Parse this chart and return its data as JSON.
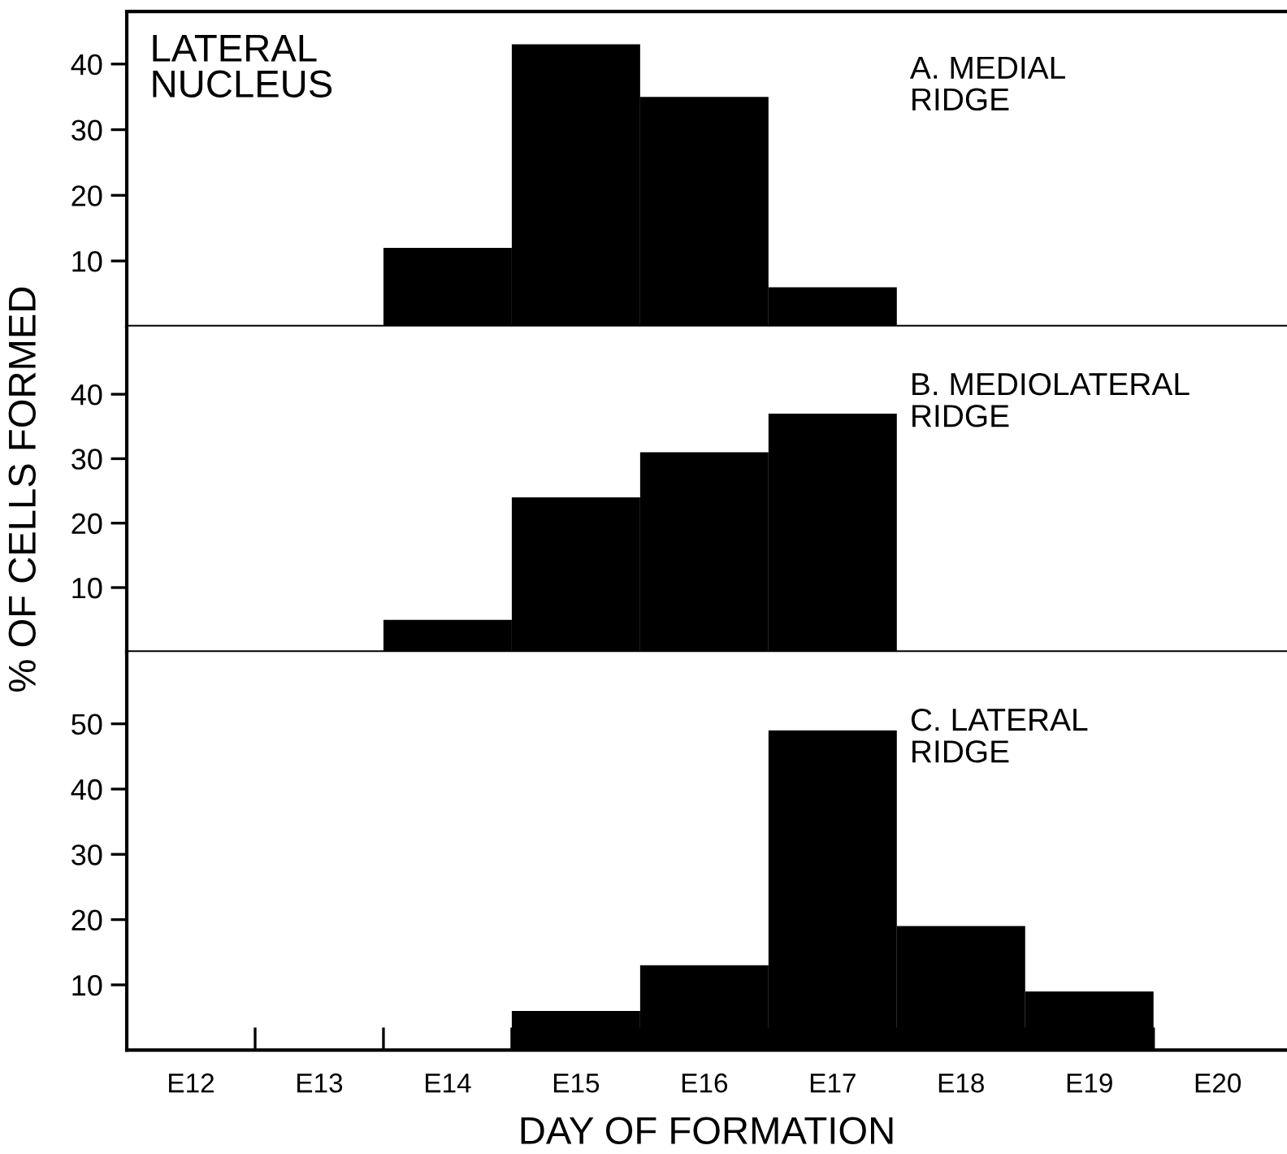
{
  "chart_data": [
    {
      "type": "bar",
      "title": "A. MEDIAL\nRIDGE",
      "annotations": [
        "LATERAL\nNUCLEUS"
      ],
      "values": [
        0,
        0,
        12,
        43,
        35,
        6,
        0,
        0,
        0
      ],
      "color": "#000000",
      "ylim": [
        0,
        48
      ],
      "yticks": [
        10,
        20,
        30,
        40
      ],
      "grid": false,
      "tick_labels": "y"
    },
    {
      "type": "bar",
      "title": "B. MEDIOLATERAL\nRIDGE",
      "ylabel": "% OF CELLS FORMED",
      "values": [
        0,
        0,
        5,
        24,
        31,
        37,
        0,
        0,
        0
      ],
      "color": "#000000",
      "ylim": [
        0,
        50.5
      ],
      "yticks": [
        10,
        20,
        30,
        40
      ],
      "grid": false,
      "tick_labels": "y"
    },
    {
      "type": "bar",
      "title": "C. LATERAL\nRIDGE",
      "xlabel": "DAY OF FORMATION",
      "categories": [
        "E12",
        "E13",
        "E14",
        "E15",
        "E16",
        "E17",
        "E18",
        "E19",
        "E20"
      ],
      "values": [
        0,
        0,
        0,
        6,
        13,
        49,
        19,
        9,
        0
      ],
      "color": "#000000",
      "ylim": [
        0,
        61
      ],
      "yticks": [
        10,
        20,
        30,
        40,
        50
      ],
      "grid": false
    }
  ]
}
